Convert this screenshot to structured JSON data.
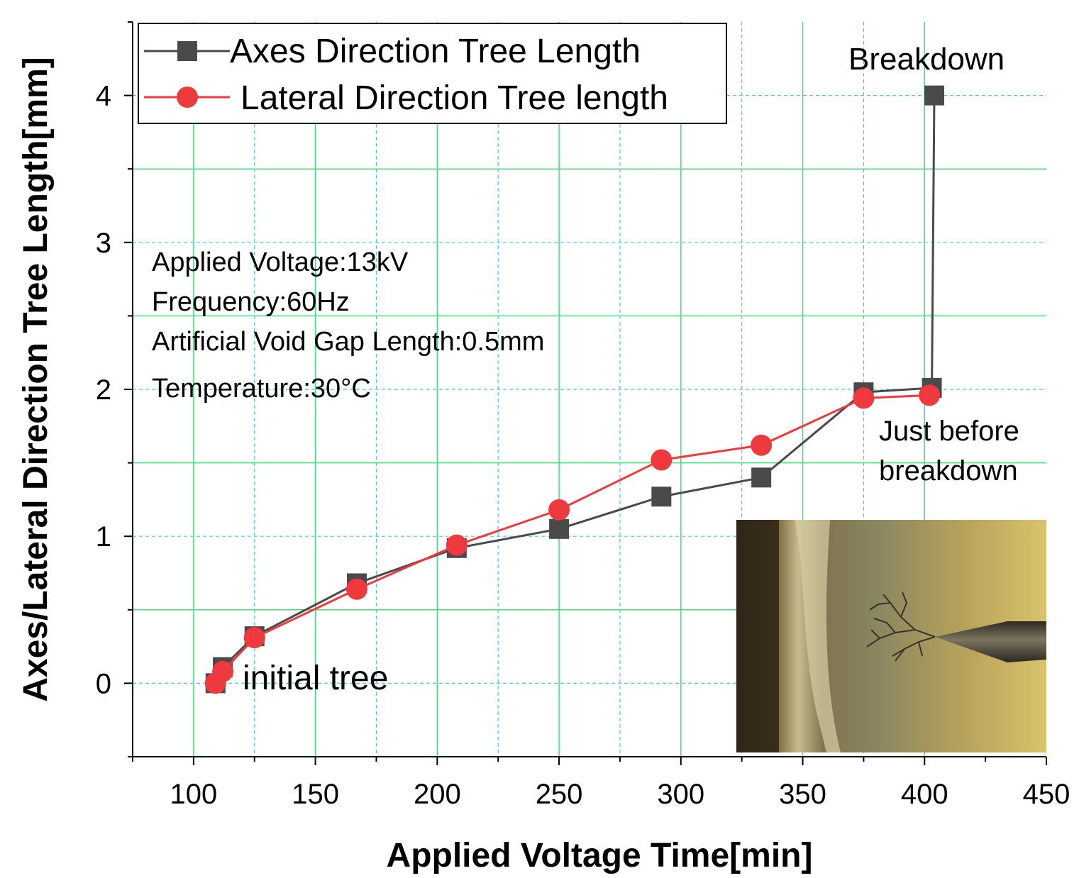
{
  "chart_data": {
    "type": "line",
    "xlabel": "Applied Voltage Time[min]",
    "ylabel": "Axes/Lateral Direction Tree Length[mm]",
    "xlim": [
      75,
      450
    ],
    "ylim": [
      -0.5,
      4.5
    ],
    "xticks": [
      100,
      150,
      200,
      250,
      300,
      350,
      400,
      450
    ],
    "yticks": [
      0,
      1,
      2,
      3,
      4
    ],
    "grid": true,
    "legend_position": "top-left",
    "series": [
      {
        "name": "Axes Direction Tree Length",
        "marker": "square",
        "color": "#4a4a4a",
        "x": [
          109,
          112,
          125,
          167,
          208,
          250,
          292,
          333,
          375,
          403,
          404
        ],
        "y": [
          0.0,
          0.11,
          0.32,
          0.68,
          0.92,
          1.05,
          1.27,
          1.4,
          1.98,
          2.01,
          4.0
        ]
      },
      {
        "name": "Lateral Direction Tree length",
        "marker": "circle",
        "color": "#ee3a3f",
        "x": [
          109,
          112,
          125,
          167,
          208,
          250,
          292,
          333,
          375,
          402
        ],
        "y": [
          0.0,
          0.08,
          0.31,
          0.64,
          0.94,
          1.18,
          1.52,
          1.62,
          1.94,
          1.96
        ]
      }
    ],
    "annotations": {
      "breakdown": "Breakdown",
      "just_before_line1": "Just before",
      "just_before_line2": "breakdown",
      "initial_tree": "initial tree"
    },
    "conditions": [
      "Applied Voltage:13kV",
      "Frequency:60Hz",
      "Artificial Void Gap Length:0.5mm",
      "Temperature:30°C"
    ]
  }
}
